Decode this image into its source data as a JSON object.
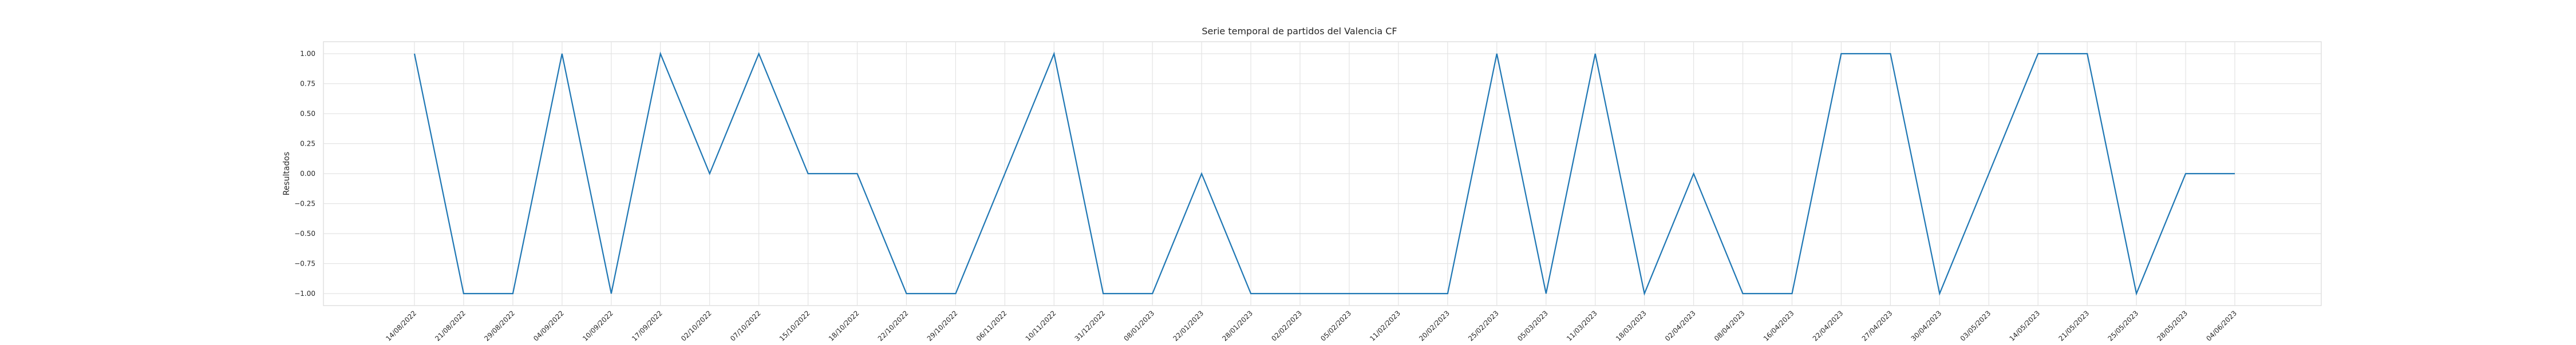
{
  "chart_data": {
    "type": "line",
    "title": "Serie temporal de partidos del Valencia CF",
    "xlabel": "",
    "ylabel": "Resultados",
    "ylim": [
      -1.1,
      1.1
    ],
    "yticks": [
      "1.00",
      "0.75",
      "0.50",
      "0.25",
      "0.00",
      "−0.25",
      "−0.50",
      "−0.75",
      "−1.00"
    ],
    "ytick_values": [
      1.0,
      0.75,
      0.5,
      0.25,
      0.0,
      -0.25,
      -0.5,
      -0.75,
      -1.0
    ],
    "grid": true,
    "line_color": "#1f77b4",
    "categories": [
      "14/08/2022",
      "21/08/2022",
      "29/08/2022",
      "04/09/2022",
      "10/09/2022",
      "17/09/2022",
      "02/10/2022",
      "07/10/2022",
      "15/10/2022",
      "18/10/2022",
      "22/10/2022",
      "29/10/2022",
      "06/11/2022",
      "10/11/2022",
      "31/12/2022",
      "08/01/2023",
      "22/01/2023",
      "28/01/2023",
      "02/02/2023",
      "05/02/2023",
      "11/02/2023",
      "20/02/2023",
      "25/02/2023",
      "05/03/2023",
      "11/03/2023",
      "18/03/2023",
      "02/04/2023",
      "08/04/2023",
      "16/04/2023",
      "22/04/2023",
      "27/04/2023",
      "30/04/2023",
      "03/05/2023",
      "14/05/2023",
      "21/05/2023",
      "25/05/2023",
      "28/05/2023",
      "04/06/2023"
    ],
    "series": [
      {
        "values": [
          1,
          -1,
          -1,
          1,
          -1,
          1,
          0,
          1,
          0,
          0,
          -1,
          -1,
          0,
          1,
          -1,
          -1,
          0,
          -1,
          -1,
          -1,
          -1,
          -1,
          1,
          -1,
          1,
          -1,
          0,
          -1,
          -1,
          1,
          1,
          -1,
          0,
          1,
          1,
          -1,
          0,
          0
        ]
      }
    ]
  }
}
